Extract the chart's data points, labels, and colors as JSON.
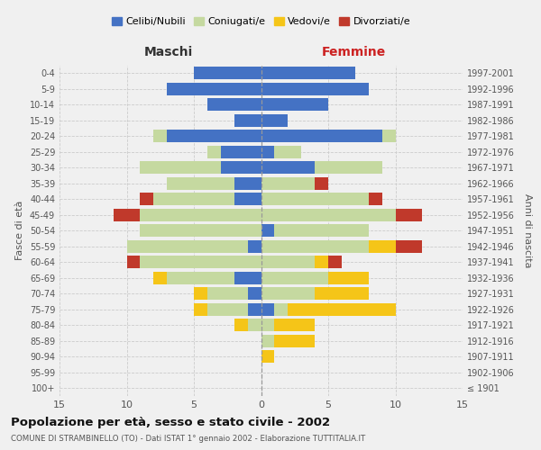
{
  "age_groups": [
    "100+",
    "95-99",
    "90-94",
    "85-89",
    "80-84",
    "75-79",
    "70-74",
    "65-69",
    "60-64",
    "55-59",
    "50-54",
    "45-49",
    "40-44",
    "35-39",
    "30-34",
    "25-29",
    "20-24",
    "15-19",
    "10-14",
    "5-9",
    "0-4"
  ],
  "birth_years": [
    "≤ 1901",
    "1902-1906",
    "1907-1911",
    "1912-1916",
    "1917-1921",
    "1922-1926",
    "1927-1931",
    "1932-1936",
    "1937-1941",
    "1942-1946",
    "1947-1951",
    "1952-1956",
    "1957-1961",
    "1962-1966",
    "1967-1971",
    "1972-1976",
    "1977-1981",
    "1982-1986",
    "1987-1991",
    "1992-1996",
    "1997-2001"
  ],
  "maschi": {
    "celibe": [
      0,
      0,
      0,
      0,
      0,
      1,
      1,
      2,
      0,
      1,
      0,
      0,
      2,
      2,
      3,
      3,
      7,
      2,
      4,
      7,
      5
    ],
    "coniugato": [
      0,
      0,
      0,
      0,
      1,
      3,
      3,
      5,
      9,
      9,
      9,
      9,
      6,
      5,
      6,
      1,
      1,
      0,
      0,
      0,
      0
    ],
    "vedovo": [
      0,
      0,
      0,
      0,
      1,
      1,
      1,
      1,
      0,
      0,
      0,
      0,
      0,
      0,
      0,
      0,
      0,
      0,
      0,
      0,
      0
    ],
    "divorziato": [
      0,
      0,
      0,
      0,
      0,
      0,
      0,
      0,
      1,
      0,
      0,
      2,
      1,
      0,
      0,
      0,
      0,
      0,
      0,
      0,
      0
    ]
  },
  "femmine": {
    "celibe": [
      0,
      0,
      0,
      0,
      0,
      1,
      0,
      0,
      0,
      0,
      1,
      0,
      0,
      0,
      4,
      1,
      9,
      2,
      5,
      8,
      7
    ],
    "coniugato": [
      0,
      0,
      0,
      1,
      1,
      1,
      4,
      5,
      4,
      8,
      7,
      10,
      8,
      4,
      5,
      2,
      1,
      0,
      0,
      0,
      0
    ],
    "vedovo": [
      0,
      0,
      1,
      3,
      3,
      8,
      4,
      3,
      1,
      2,
      0,
      0,
      0,
      0,
      0,
      0,
      0,
      0,
      0,
      0,
      0
    ],
    "divorziato": [
      0,
      0,
      0,
      0,
      0,
      0,
      0,
      0,
      1,
      2,
      0,
      2,
      1,
      1,
      0,
      0,
      0,
      0,
      0,
      0,
      0
    ]
  },
  "colors": {
    "celibe": "#4472c4",
    "coniugato": "#c5d9a0",
    "vedovo": "#f5c518",
    "divorziato": "#c0392b"
  },
  "legend_labels": [
    "Celibi/Nubili",
    "Coniugati/e",
    "Vedovi/e",
    "Divorziati/e"
  ],
  "maschi_label": "Maschi",
  "femmine_label": "Femmine",
  "ylabel_left": "Fasce di età",
  "ylabel_right": "Anni di nascita",
  "title": "Popolazione per età, sesso e stato civile - 2002",
  "subtitle": "COMUNE DI STRAMBINELLO (TO) - Dati ISTAT 1° gennaio 2002 - Elaborazione TUTTITALIA.IT",
  "xlim": 15,
  "bg_color": "#f0f0f0",
  "grid_color": "#cccccc"
}
